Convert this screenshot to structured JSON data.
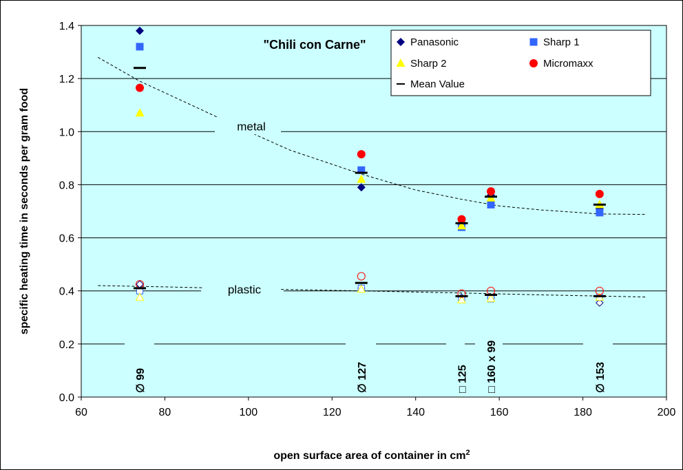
{
  "chart_data": {
    "type": "scatter",
    "title": "\"Chili con Carne\"",
    "xlabel": "open surface area of container in cm",
    "xlabel_sup": "2",
    "ylabel": "specific heating time in seconds per gram food",
    "xlim": [
      60,
      200
    ],
    "ylim": [
      0.0,
      1.4
    ],
    "x_ticks": [
      "60",
      "80",
      "100",
      "120",
      "140",
      "160",
      "180",
      "200"
    ],
    "y_ticks": [
      "0.0",
      "0.2",
      "0.4",
      "0.6",
      "0.8",
      "1.0",
      "1.2",
      "1.4"
    ],
    "grid": "horizontal",
    "legend_position": "top-right",
    "colors": {
      "plot_bg": "#ccffff",
      "panasonic": "#000080",
      "sharp1": "#3366ff",
      "sharp2": "#ffff00",
      "micromaxx": "#ff0000",
      "mean": "#000000"
    },
    "region_labels": [
      "metal",
      "plastic"
    ],
    "container_labels": [
      {
        "x": 74,
        "symbol": "∅",
        "text": "99"
      },
      {
        "x": 127,
        "symbol": "∅",
        "text": "127"
      },
      {
        "x": 151,
        "symbol": "□",
        "text": "125"
      },
      {
        "x": 158,
        "symbol": "□",
        "text": "160 x 99"
      },
      {
        "x": 184,
        "symbol": "∅",
        "text": "153"
      }
    ],
    "series": [
      {
        "name": "Panasonic",
        "marker": "diamond",
        "container": "metal",
        "points": [
          [
            74,
            1.38
          ],
          [
            127,
            0.79
          ],
          [
            151,
            0.65
          ],
          [
            158,
            0.76
          ],
          [
            184,
            0.71
          ]
        ]
      },
      {
        "name": "Sharp 1",
        "marker": "square",
        "container": "metal",
        "points": [
          [
            74,
            1.32
          ],
          [
            127,
            0.855
          ],
          [
            151,
            0.64
          ],
          [
            158,
            0.725
          ],
          [
            184,
            0.695
          ]
        ]
      },
      {
        "name": "Sharp 2",
        "marker": "triangle",
        "container": "metal",
        "points": [
          [
            74,
            1.07
          ],
          [
            127,
            0.82
          ],
          [
            151,
            0.645
          ],
          [
            158,
            0.75
          ],
          [
            184,
            0.725
          ]
        ]
      },
      {
        "name": "Micromaxx",
        "marker": "circle",
        "container": "metal",
        "points": [
          [
            74,
            1.165
          ],
          [
            127,
            0.915
          ],
          [
            151,
            0.67
          ],
          [
            158,
            0.775
          ],
          [
            184,
            0.765
          ]
        ]
      },
      {
        "name": "Mean Value",
        "marker": "dash",
        "container": "metal",
        "points": [
          [
            74,
            1.24
          ],
          [
            127,
            0.845
          ],
          [
            151,
            0.655
          ],
          [
            158,
            0.755
          ],
          [
            184,
            0.725
          ]
        ]
      },
      {
        "name": "Panasonic",
        "marker": "diamond-open",
        "container": "plastic",
        "points": [
          [
            74,
            0.425
          ],
          [
            127,
            0.41
          ],
          [
            151,
            0.375
          ],
          [
            158,
            0.375
          ],
          [
            184,
            0.355
          ]
        ]
      },
      {
        "name": "Sharp 1",
        "marker": "square-open",
        "container": "plastic",
        "points": [
          [
            74,
            0.4
          ],
          [
            127,
            0.41
          ],
          [
            151,
            0.37
          ],
          [
            158,
            0.37
          ],
          [
            184,
            0.375
          ]
        ]
      },
      {
        "name": "Sharp 2",
        "marker": "triangle-open",
        "container": "plastic",
        "points": [
          [
            74,
            0.375
          ],
          [
            127,
            0.405
          ],
          [
            151,
            0.365
          ],
          [
            158,
            0.37
          ],
          [
            184,
            0.375
          ]
        ]
      },
      {
        "name": "Micromaxx",
        "marker": "circle-open",
        "container": "plastic",
        "points": [
          [
            74,
            0.425
          ],
          [
            127,
            0.455
          ],
          [
            151,
            0.39
          ],
          [
            158,
            0.4
          ],
          [
            184,
            0.4
          ]
        ]
      },
      {
        "name": "Mean Value",
        "marker": "dash",
        "container": "plastic",
        "points": [
          [
            74,
            0.41
          ],
          [
            127,
            0.43
          ],
          [
            151,
            0.38
          ],
          [
            158,
            0.385
          ],
          [
            184,
            0.38
          ]
        ]
      }
    ],
    "trend_lines": [
      {
        "container": "metal",
        "points": [
          [
            64,
            1.28
          ],
          [
            74,
            1.19
          ],
          [
            85,
            1.11
          ],
          [
            100,
            1.0
          ],
          [
            110,
            0.93
          ],
          [
            127,
            0.84
          ],
          [
            140,
            0.78
          ],
          [
            151,
            0.745
          ],
          [
            160,
            0.72
          ],
          [
            170,
            0.705
          ],
          [
            184,
            0.69
          ],
          [
            195,
            0.688
          ]
        ]
      },
      {
        "container": "plastic",
        "points": [
          [
            64,
            0.42
          ],
          [
            80,
            0.415
          ],
          [
            100,
            0.408
          ],
          [
            127,
            0.4
          ],
          [
            151,
            0.392
          ],
          [
            170,
            0.385
          ],
          [
            195,
            0.377
          ]
        ]
      }
    ],
    "legend": [
      "Panasonic",
      "Sharp 1",
      "Sharp 2",
      "Micromaxx",
      "Mean Value"
    ]
  }
}
